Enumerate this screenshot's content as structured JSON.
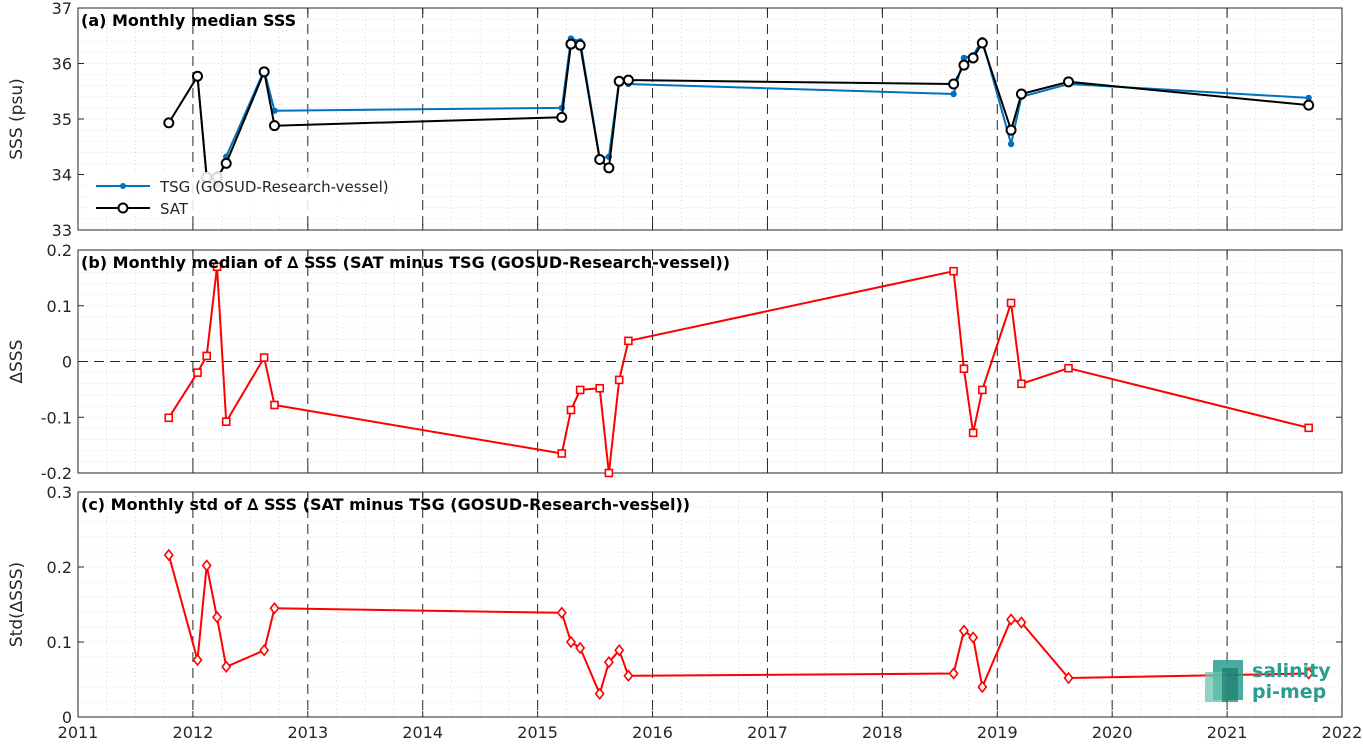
{
  "x_ticks": [
    "2011",
    "2012",
    "2013",
    "2014",
    "2015",
    "2016",
    "2017",
    "2018",
    "2019",
    "2020",
    "2021",
    "2022"
  ],
  "logo": {
    "line1": "salinity",
    "line2": "pi-mep",
    "color": "#2a9d8f"
  },
  "colors": {
    "tsg": "#0072BD",
    "sat": "#000000",
    "delta": "#FF0000",
    "grid": "#d9d9d9",
    "vgrid": "#262626"
  },
  "chart_data": [
    {
      "type": "line",
      "title": "(a) Monthly median SSS",
      "ylabel": "SSS (psu)",
      "ylim": [
        33,
        37
      ],
      "yticks": [
        "33",
        "34",
        "35",
        "36",
        "37"
      ],
      "xlim": [
        2011,
        2022
      ],
      "legend": {
        "position": "bottom-left"
      },
      "x": [
        2011.79,
        2012.04,
        2012.12,
        2012.21,
        2012.29,
        2012.62,
        2012.71,
        2015.21,
        2015.29,
        2015.37,
        2015.54,
        2015.62,
        2015.71,
        2015.79,
        2018.62,
        2018.71,
        2018.79,
        2018.87,
        2019.12,
        2019.21,
        2019.62,
        2021.71
      ],
      "series": [
        {
          "name": "TSG (GOSUD-Research-vessel)",
          "color": "#0072BD",
          "marker": "dot",
          "values": [
            null,
            35.77,
            33.93,
            33.8,
            34.32,
            35.88,
            35.15,
            35.2,
            36.45,
            36.4,
            34.3,
            34.32,
            35.7,
            35.63,
            35.45,
            36.1,
            36.15,
            36.42,
            34.55,
            35.4,
            35.63,
            35.38
          ]
        },
        {
          "name": "SAT",
          "color": "#000000",
          "marker": "circle",
          "values": [
            34.93,
            35.77,
            33.95,
            33.95,
            34.2,
            35.85,
            34.88,
            35.03,
            36.35,
            36.33,
            34.27,
            34.12,
            35.68,
            35.7,
            35.63,
            35.97,
            36.1,
            36.37,
            34.8,
            35.45,
            35.67,
            35.25
          ]
        }
      ]
    },
    {
      "type": "line",
      "title": "(b) Monthly median of ∆ SSS (SAT minus TSG (GOSUD-Research-vessel))",
      "ylabel": "∆SSS",
      "ylim": [
        -0.2,
        0.2
      ],
      "yticks": [
        "-0.2",
        "-0.1",
        "0",
        "0.1",
        "0.2"
      ],
      "xlim": [
        2011,
        2022
      ],
      "zero_line": true,
      "x": [
        2011.79,
        2012.04,
        2012.12,
        2012.21,
        2012.29,
        2012.62,
        2012.71,
        2015.21,
        2015.29,
        2015.37,
        2015.54,
        2015.62,
        2015.71,
        2015.79,
        2018.62,
        2018.71,
        2018.79,
        2018.87,
        2019.12,
        2019.21,
        2019.62,
        2021.71
      ],
      "series": [
        {
          "color": "#FF0000",
          "marker": "square",
          "values": [
            -0.101,
            -0.02,
            0.01,
            0.17,
            -0.108,
            0.007,
            -0.078,
            -0.165,
            -0.087,
            -0.051,
            -0.048,
            -0.2,
            -0.033,
            0.037,
            0.162,
            -0.013,
            -0.128,
            -0.051,
            0.105,
            -0.04,
            -0.012,
            -0.119
          ]
        }
      ]
    },
    {
      "type": "line",
      "title": "(c) Monthly std of ∆ SSS (SAT minus TSG (GOSUD-Research-vessel))",
      "ylabel": "Std(∆SSS)",
      "ylim": [
        0,
        0.3
      ],
      "yticks": [
        "0",
        "0.1",
        "0.2",
        "0.3"
      ],
      "xlim": [
        2011,
        2022
      ],
      "x": [
        2011.79,
        2012.04,
        2012.12,
        2012.21,
        2012.29,
        2012.62,
        2012.71,
        2015.21,
        2015.29,
        2015.37,
        2015.54,
        2015.62,
        2015.71,
        2015.79,
        2018.62,
        2018.71,
        2018.79,
        2018.87,
        2019.12,
        2019.21,
        2019.62,
        2021.71
      ],
      "series": [
        {
          "color": "#FF0000",
          "marker": "diamond",
          "values": [
            0.216,
            0.076,
            0.202,
            0.133,
            0.067,
            0.089,
            0.145,
            0.139,
            0.1,
            0.092,
            0.031,
            0.073,
            0.089,
            0.055,
            0.058,
            0.115,
            0.106,
            0.04,
            0.13,
            0.126,
            0.052,
            0.058
          ]
        }
      ]
    }
  ]
}
